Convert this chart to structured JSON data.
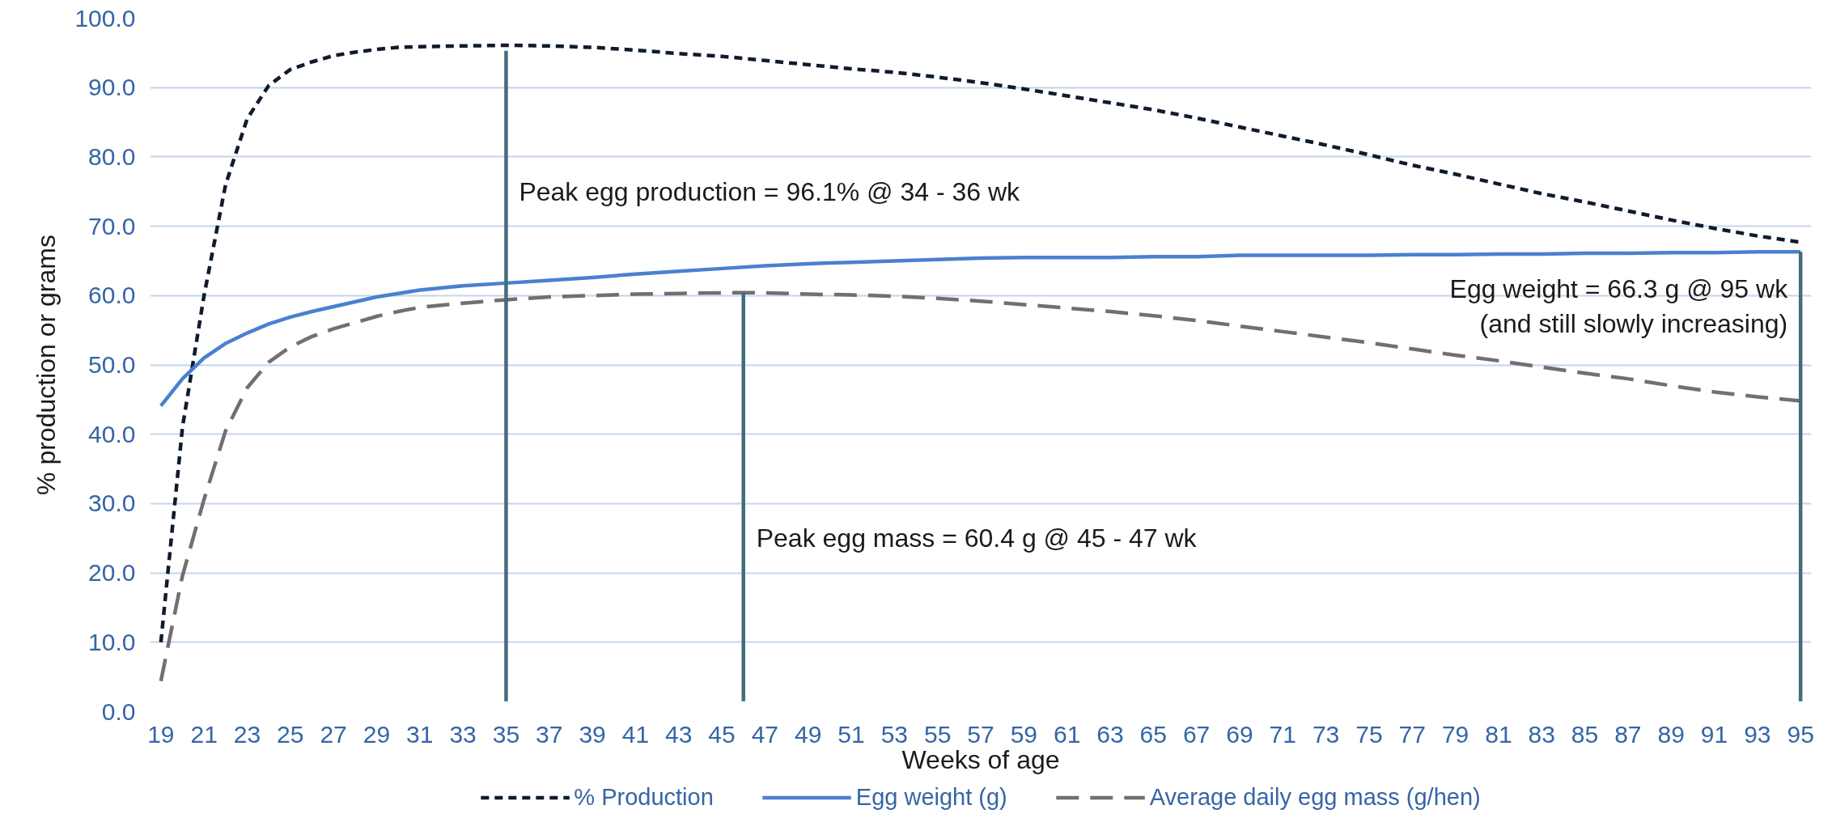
{
  "chart_data": {
    "type": "line",
    "xlabel": "Weeks of age",
    "ylabel": "% production or grams",
    "x": [
      19,
      20,
      21,
      22,
      23,
      24,
      25,
      26,
      27,
      28,
      29,
      30,
      31,
      33,
      35,
      37,
      39,
      41,
      43,
      45,
      47,
      49,
      51,
      53,
      55,
      57,
      59,
      61,
      63,
      65,
      67,
      69,
      71,
      73,
      75,
      77,
      79,
      81,
      83,
      85,
      87,
      89,
      91,
      93,
      95
    ],
    "series": [
      {
        "name": "% Production",
        "color": "#0f1b2d",
        "line_style": "dotted",
        "values": [
          10,
          41,
          60,
          76,
          85.5,
          90.3,
          92.6,
          93.7,
          94.6,
          95.1,
          95.5,
          95.8,
          95.9,
          96.0,
          96.1,
          96.0,
          95.8,
          95.4,
          94.9,
          94.5,
          93.9,
          93.3,
          92.7,
          92.2,
          91.5,
          90.7,
          89.8,
          88.8,
          87.8,
          86.8,
          85.6,
          84.3,
          83.0,
          81.7,
          80.3,
          78.8,
          77.5,
          76.1,
          74.7,
          73.5,
          72.2,
          70.9,
          69.7,
          68.6,
          67.7
        ]
      },
      {
        "name": "Egg weight (g)",
        "color": "#4a80d0",
        "line_style": "solid",
        "values": [
          44.1,
          48.0,
          51.0,
          53.1,
          54.6,
          55.9,
          56.9,
          57.7,
          58.4,
          59.1,
          59.8,
          60.3,
          60.8,
          61.4,
          61.8,
          62.2,
          62.6,
          63.1,
          63.5,
          63.9,
          64.3,
          64.6,
          64.8,
          65.0,
          65.2,
          65.4,
          65.5,
          65.5,
          65.5,
          65.6,
          65.6,
          65.8,
          65.8,
          65.8,
          65.8,
          65.9,
          65.9,
          66.0,
          66.0,
          66.1,
          66.1,
          66.2,
          66.2,
          66.3,
          66.3
        ]
      },
      {
        "name": "Average daily egg mass (g/hen)",
        "color": "#707070",
        "line_style": "dashed",
        "values": [
          4.4,
          19.6,
          30.6,
          40.5,
          46.7,
          50.4,
          52.6,
          54.1,
          55.2,
          56.1,
          57.0,
          57.7,
          58.3,
          58.9,
          59.4,
          59.8,
          60.0,
          60.2,
          60.3,
          60.4,
          60.4,
          60.2,
          60.1,
          59.9,
          59.6,
          59.2,
          58.7,
          58.2,
          57.7,
          57.1,
          56.4,
          55.6,
          54.8,
          54.0,
          53.2,
          52.3,
          51.4,
          50.6,
          49.7,
          48.8,
          48.0,
          47.0,
          46.1,
          45.4,
          44.8
        ]
      },
      {
        "color": "#456b7e",
        "line_style": "solid",
        "x": [
          35,
          35
        ],
        "values": [
          1.5,
          95.3
        ]
      },
      {
        "color": "#456b7e",
        "line_style": "solid",
        "x": [
          46,
          46
        ],
        "values": [
          1.5,
          60.4
        ]
      },
      {
        "color": "#456b7e",
        "line_style": "solid",
        "x": [
          95,
          95
        ],
        "values": [
          1.5,
          66.3
        ]
      }
    ],
    "annotations": [
      {
        "text": "Peak egg production = 96.1% @ 34 - 36 wk",
        "x": 35,
        "y": 75
      },
      {
        "text": "Peak egg mass = 60.4 g @ 45 - 47 wk",
        "x": 46,
        "y": 25
      },
      {
        "text": "Egg weight = 66.3 g @ 95 wk\n(and still slowly increasing)",
        "x": 95,
        "y": 58.5
      }
    ],
    "xlim": [
      18.5,
      95.5
    ],
    "xticks": [
      19,
      21,
      23,
      25,
      27,
      29,
      31,
      33,
      35,
      37,
      39,
      41,
      43,
      45,
      47,
      49,
      51,
      53,
      55,
      57,
      59,
      61,
      63,
      65,
      67,
      69,
      71,
      73,
      75,
      77,
      79,
      81,
      83,
      85,
      87,
      89,
      91,
      93,
      95
    ],
    "ylim": [
      0,
      100
    ],
    "yticks": [
      {
        "value": 0,
        "label": "0.0"
      },
      {
        "value": 10,
        "label": "10.0"
      },
      {
        "value": 20,
        "label": "20.0"
      },
      {
        "value": 30,
        "label": "30.0"
      },
      {
        "value": 40,
        "label": "40.0"
      },
      {
        "value": 50,
        "label": "50.0"
      },
      {
        "value": 60,
        "label": "60.0"
      },
      {
        "value": 70,
        "label": "70.0"
      },
      {
        "value": 80,
        "label": "80.0"
      },
      {
        "value": 90,
        "label": "90.0"
      },
      {
        "value": 100,
        "label": "100.0"
      }
    ],
    "grid": "y",
    "legend": "bottom"
  }
}
